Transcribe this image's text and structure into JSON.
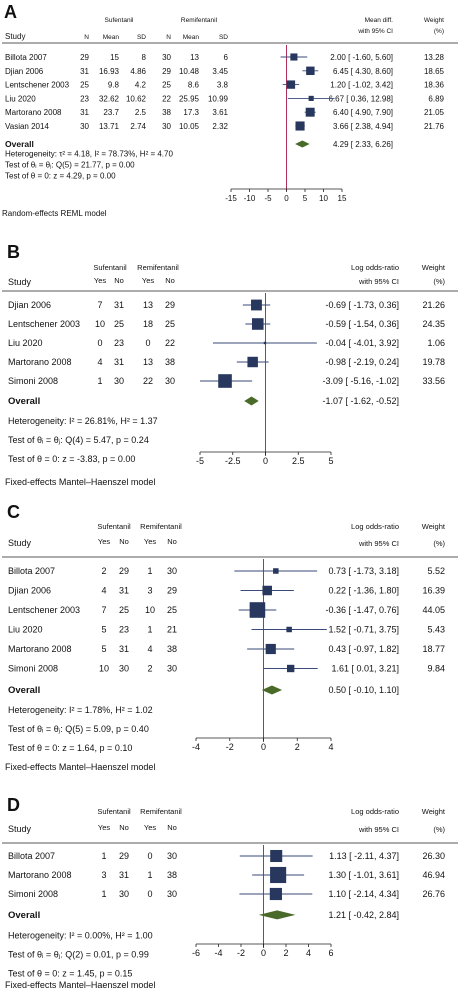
{
  "chart_data": [
    {
      "type": "forest",
      "panel": "A",
      "group1": "Sufentanil",
      "group2": "Remifentanil",
      "col_study": "Study",
      "subcols": [
        "N",
        "Mean",
        "SD",
        "N",
        "Mean",
        "SD"
      ],
      "effect_header": [
        "Mean diff.",
        "with 95% CI"
      ],
      "weight_header": [
        "Weight",
        "(%)"
      ],
      "studies": [
        {
          "name": "Billota 2007",
          "cells": [
            "29",
            "15",
            "8",
            "30",
            "13",
            "6"
          ],
          "est": 2.0,
          "lo": -1.6,
          "hi": 5.6,
          "ci_text": "2.00 [ -1.60,   5.60]",
          "weight": "13.28"
        },
        {
          "name": "Djian 2006",
          "cells": [
            "31",
            "16.93",
            "4.86",
            "29",
            "10.48",
            "3.45"
          ],
          "est": 6.45,
          "lo": 4.3,
          "hi": 8.6,
          "ci_text": "6.45 [  4.30,   8.60]",
          "weight": "18.65"
        },
        {
          "name": "Lentschener 2003",
          "cells": [
            "25",
            "9.8",
            "4.2",
            "25",
            "8.6",
            "3.8"
          ],
          "est": 1.2,
          "lo": -1.02,
          "hi": 3.42,
          "ci_text": "1.20 [ -1.02,   3.42]",
          "weight": "18.36"
        },
        {
          "name": "Liu 2020",
          "cells": [
            "23",
            "32.62",
            "10.62",
            "22",
            "25.95",
            "10.99"
          ],
          "est": 6.67,
          "lo": 0.36,
          "hi": 12.98,
          "ci_text": "6.67 [  0.36, 12.98]",
          "weight": "6.89"
        },
        {
          "name": "Martorano 2008",
          "cells": [
            "31",
            "23.7",
            "2.5",
            "38",
            "17.3",
            "3.61"
          ],
          "est": 6.4,
          "lo": 4.9,
          "hi": 7.9,
          "ci_text": "6.40 [  4.90,   7.90]",
          "weight": "21.05"
        },
        {
          "name": "Vasian 2014",
          "cells": [
            "30",
            "13.71",
            "2.74",
            "30",
            "10.05",
            "2.32"
          ],
          "est": 3.66,
          "lo": 2.38,
          "hi": 4.94,
          "ci_text": "3.66 [  2.38,   4.94]",
          "weight": "21.76"
        }
      ],
      "overall": {
        "label": "Overall",
        "est": 4.29,
        "lo": 2.33,
        "hi": 6.26,
        "ci_text": "4.29 [  2.33,   6.26]"
      },
      "stats": [
        "Heterogeneity: τ² = 4.18, I² = 78.73%, H² = 4.70",
        "Test of θᵢ = θⱼ: Q(5) = 21.77, p = 0.00",
        "Test of θ = 0: z = 4.29, p = 0.00"
      ],
      "xticks": [
        -15,
        -10,
        -5,
        0,
        5,
        10,
        15
      ],
      "xlim": [
        -15,
        15
      ],
      "footer": "Random-effects REML model"
    },
    {
      "type": "forest",
      "panel": "B",
      "group1": "Sufentanil",
      "group2": "Remifentanil",
      "col_study": "Study",
      "subcols": [
        "Yes",
        "No",
        "Yes",
        "No"
      ],
      "effect_header": [
        "Log odds-ratio",
        "with 95% CI"
      ],
      "weight_header": [
        "Weight",
        "(%)"
      ],
      "studies": [
        {
          "name": "Djian 2006",
          "cells": [
            "7",
            "31",
            "13",
            "29"
          ],
          "est": -0.69,
          "lo": -1.73,
          "hi": 0.36,
          "ci_text": "-0.69 [ -1.73,  0.36]",
          "weight": "21.26"
        },
        {
          "name": "Lentschener 2003",
          "cells": [
            "10",
            "25",
            "18",
            "25"
          ],
          "est": -0.59,
          "lo": -1.54,
          "hi": 0.36,
          "ci_text": "-0.59 [ -1.54,  0.36]",
          "weight": "24.35"
        },
        {
          "name": "Liu 2020",
          "cells": [
            "0",
            "23",
            "0",
            "22"
          ],
          "est": -0.04,
          "lo": -4.01,
          "hi": 3.92,
          "ci_text": "-0.04 [ -4.01,  3.92]",
          "weight": "1.06"
        },
        {
          "name": "Martorano 2008",
          "cells": [
            "4",
            "31",
            "13",
            "38"
          ],
          "est": -0.98,
          "lo": -2.19,
          "hi": 0.24,
          "ci_text": "-0.98 [ -2.19,  0.24]",
          "weight": "19.78"
        },
        {
          "name": "Simoni 2008",
          "cells": [
            "1",
            "30",
            "22",
            "30"
          ],
          "est": -3.09,
          "lo": -5.16,
          "hi": -1.02,
          "ci_text": "-3.09 [ -5.16, -1.02]",
          "weight": "33.56"
        }
      ],
      "overall": {
        "label": "Overall",
        "est": -1.07,
        "lo": -1.62,
        "hi": -0.52,
        "ci_text": "-1.07 [ -1.62, -0.52]"
      },
      "stats": [
        "Heterogeneity: I² = 26.81%, H² = 1.37",
        "Test of θᵢ = θⱼ: Q(4) = 5.47, p = 0.24",
        "Test of θ = 0: z = -3.83, p = 0.00"
      ],
      "xticks": [
        -5,
        -2.5,
        0,
        2.5,
        5
      ],
      "xlim": [
        -5,
        5
      ],
      "footer": "Fixed-effects Mantel–Haenszel model"
    },
    {
      "type": "forest",
      "panel": "C",
      "group1": "Sufentanil",
      "group2": "Remifentanil",
      "col_study": "Study",
      "subcols": [
        "Yes",
        "No",
        "Yes",
        "No"
      ],
      "effect_header": [
        "Log odds-ratio",
        "with 95% CI"
      ],
      "weight_header": [
        "Weight",
        "(%)"
      ],
      "studies": [
        {
          "name": "Billota 2007",
          "cells": [
            "2",
            "29",
            "1",
            "30"
          ],
          "est": 0.73,
          "lo": -1.73,
          "hi": 3.18,
          "ci_text": "0.73 [ -1.73, 3.18]",
          "weight": "5.52"
        },
        {
          "name": "Djian 2006",
          "cells": [
            "4",
            "31",
            "3",
            "29"
          ],
          "est": 0.22,
          "lo": -1.36,
          "hi": 1.8,
          "ci_text": "0.22 [ -1.36, 1.80]",
          "weight": "16.39"
        },
        {
          "name": "Lentschener 2003",
          "cells": [
            "7",
            "25",
            "10",
            "25"
          ],
          "est": -0.36,
          "lo": -1.47,
          "hi": 0.76,
          "ci_text": "-0.36 [ -1.47, 0.76]",
          "weight": "44.05"
        },
        {
          "name": "Liu 2020",
          "cells": [
            "5",
            "23",
            "1",
            "21"
          ],
          "est": 1.52,
          "lo": -0.71,
          "hi": 3.75,
          "ci_text": "1.52 [ -0.71, 3.75]",
          "weight": "5.43"
        },
        {
          "name": "Martorano 2008",
          "cells": [
            "5",
            "31",
            "4",
            "38"
          ],
          "est": 0.43,
          "lo": -0.97,
          "hi": 1.82,
          "ci_text": "0.43 [ -0.97, 1.82]",
          "weight": "18.77"
        },
        {
          "name": "Simoni 2008",
          "cells": [
            "10",
            "30",
            "2",
            "30"
          ],
          "est": 1.61,
          "lo": 0.01,
          "hi": 3.21,
          "ci_text": "1.61 [  0.01, 3.21]",
          "weight": "9.84"
        }
      ],
      "overall": {
        "label": "Overall",
        "est": 0.5,
        "lo": -0.1,
        "hi": 1.1,
        "ci_text": "0.50 [ -0.10, 1.10]"
      },
      "stats": [
        "Heterogeneity: I² = 1.78%, H² = 1.02",
        "Test of θᵢ = θⱼ: Q(5) = 5.09, p = 0.40",
        "Test of θ = 0: z = 1.64, p = 0.10"
      ],
      "xticks": [
        -4,
        -2,
        0,
        2,
        4
      ],
      "xlim": [
        -4,
        4
      ],
      "footer": "Fixed-effects Mantel–Haenszel model"
    },
    {
      "type": "forest",
      "panel": "D",
      "group1": "Sufentanil",
      "group2": "Remifentanil",
      "col_study": "Study",
      "subcols": [
        "Yes",
        "No",
        "Yes",
        "No"
      ],
      "effect_header": [
        "Log odds-ratio",
        "with 95% CI"
      ],
      "weight_header": [
        "Weight",
        "(%)"
      ],
      "studies": [
        {
          "name": "Billota 2007",
          "cells": [
            "1",
            "29",
            "0",
            "30"
          ],
          "est": 1.13,
          "lo": -2.11,
          "hi": 4.37,
          "ci_text": "1.13 [ -2.11, 4.37]",
          "weight": "26.30"
        },
        {
          "name": "Martorano 2008",
          "cells": [
            "3",
            "31",
            "1",
            "38"
          ],
          "est": 1.3,
          "lo": -1.01,
          "hi": 3.61,
          "ci_text": "1.30 [ -1.01, 3.61]",
          "weight": "46.94"
        },
        {
          "name": "Simoni 2008",
          "cells": [
            "1",
            "30",
            "0",
            "30"
          ],
          "est": 1.1,
          "lo": -2.14,
          "hi": 4.34,
          "ci_text": "1.10 [ -2.14, 4.34]",
          "weight": "26.76"
        }
      ],
      "overall": {
        "label": "Overall",
        "est": 1.21,
        "lo": -0.42,
        "hi": 2.84,
        "ci_text": "1.21 [ -0.42, 2.84]"
      },
      "stats": [
        "Heterogeneity: I² = 0.00%, H² = 1.00",
        "Test of θᵢ = θⱼ: Q(2) = 0.01, p = 0.99",
        "Test of θ = 0: z = 1.45, p = 0.15"
      ],
      "xticks": [
        -6,
        -4,
        -2,
        0,
        2,
        4,
        6
      ],
      "xlim": [
        -6,
        6
      ],
      "footer": "Fixed-effects Mantel–Haenszel model"
    }
  ],
  "colors": {
    "marker": "#27375e",
    "diamond": "#4a6a2a",
    "ci_line": "#3a4a7a",
    "null_line": "#b0305a",
    "rule": "#222222"
  }
}
